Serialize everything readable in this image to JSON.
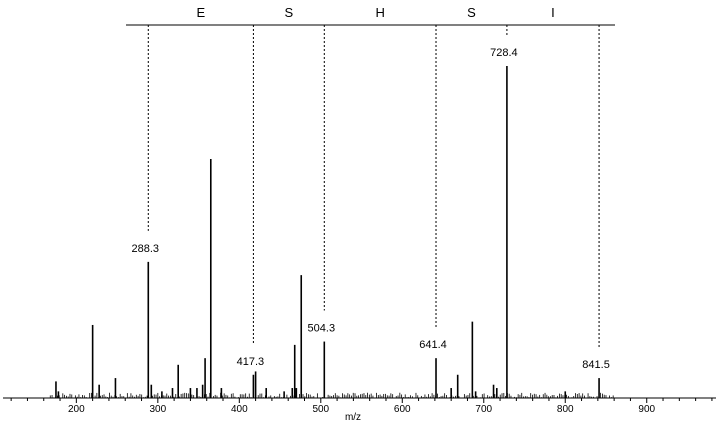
{
  "chart_data": {
    "type": "bar",
    "xlabel": "m/z",
    "ylabel": "",
    "xlim": [
      110,
      985
    ],
    "ylim": [
      0,
      100
    ],
    "x_ticks": [
      200,
      300,
      400,
      500,
      600,
      700,
      800,
      900
    ],
    "sequence_ladder": {
      "residues": [
        "E",
        "S",
        "H",
        "S",
        "I"
      ],
      "boundaries": [
        288.3,
        417.3,
        504.3,
        641.4,
        728.4,
        841.5
      ]
    },
    "labeled_peaks": [
      {
        "mz": 288.3,
        "label": "288.3",
        "intensity": 41
      },
      {
        "mz": 417.3,
        "label": "417.3",
        "intensity": 7
      },
      {
        "mz": 504.3,
        "label": "504.3",
        "intensity": 17
      },
      {
        "mz": 641.4,
        "label": "641.4",
        "intensity": 12
      },
      {
        "mz": 728.4,
        "label": "728.4",
        "intensity": 100
      },
      {
        "mz": 841.5,
        "label": "841.5",
        "intensity": 6
      }
    ],
    "peaks": [
      {
        "mz": 175,
        "intensity": 5
      },
      {
        "mz": 178,
        "intensity": 2
      },
      {
        "mz": 220,
        "intensity": 22
      },
      {
        "mz": 228,
        "intensity": 4
      },
      {
        "mz": 248,
        "intensity": 6
      },
      {
        "mz": 288.3,
        "intensity": 41
      },
      {
        "mz": 292,
        "intensity": 4
      },
      {
        "mz": 305,
        "intensity": 2
      },
      {
        "mz": 318,
        "intensity": 3
      },
      {
        "mz": 325,
        "intensity": 10
      },
      {
        "mz": 340,
        "intensity": 3
      },
      {
        "mz": 348,
        "intensity": 3
      },
      {
        "mz": 355,
        "intensity": 4
      },
      {
        "mz": 358,
        "intensity": 12
      },
      {
        "mz": 365,
        "intensity": 72
      },
      {
        "mz": 378,
        "intensity": 3
      },
      {
        "mz": 417.3,
        "intensity": 7
      },
      {
        "mz": 420,
        "intensity": 8
      },
      {
        "mz": 433,
        "intensity": 3
      },
      {
        "mz": 455,
        "intensity": 2
      },
      {
        "mz": 465,
        "intensity": 3
      },
      {
        "mz": 468,
        "intensity": 16
      },
      {
        "mz": 470,
        "intensity": 3
      },
      {
        "mz": 476,
        "intensity": 37
      },
      {
        "mz": 504.3,
        "intensity": 17
      },
      {
        "mz": 660,
        "intensity": 3
      },
      {
        "mz": 668,
        "intensity": 7
      },
      {
        "mz": 641.4,
        "intensity": 12
      },
      {
        "mz": 686,
        "intensity": 23
      },
      {
        "mz": 690,
        "intensity": 2
      },
      {
        "mz": 712,
        "intensity": 4
      },
      {
        "mz": 716,
        "intensity": 3
      },
      {
        "mz": 728.4,
        "intensity": 100
      },
      {
        "mz": 800,
        "intensity": 2
      },
      {
        "mz": 841.5,
        "intensity": 6
      }
    ]
  }
}
